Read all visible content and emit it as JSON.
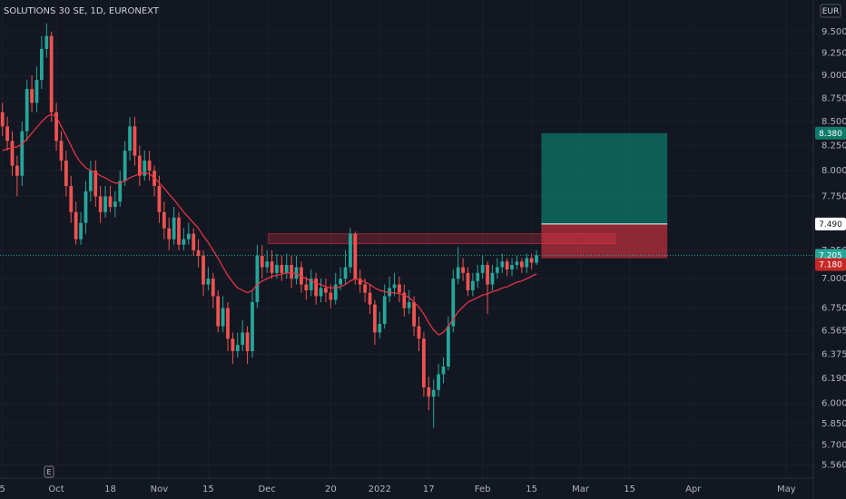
{
  "chart_data": {
    "type": "candlestick",
    "title": "SOLUTIONS 30 SE, 1D, EURONEXT",
    "currency": "EUR",
    "log": true,
    "grid": true,
    "up_color": "#26a69a",
    "down_color": "#ef5350",
    "ma_color": "#f23645",
    "xlim": [
      -0.5,
      165.5
    ],
    "ylim": [
      5.47,
      9.88
    ],
    "xticks": [
      {
        "value": 0,
        "label": "5"
      },
      {
        "value": 11,
        "label": "Oct"
      },
      {
        "value": 22,
        "label": "18"
      },
      {
        "value": 32,
        "label": "Nov"
      },
      {
        "value": 42,
        "label": "15"
      },
      {
        "value": 54,
        "label": "Dec"
      },
      {
        "value": 67,
        "label": "20"
      },
      {
        "value": 77,
        "label": "2022"
      },
      {
        "value": 87,
        "label": "17"
      },
      {
        "value": 98,
        "label": "Feb"
      },
      {
        "value": 108,
        "label": "15"
      },
      {
        "value": 118,
        "label": "Mar"
      },
      {
        "value": 128,
        "label": "15"
      },
      {
        "value": 141,
        "label": "Apr"
      },
      {
        "value": 160,
        "label": "May"
      }
    ],
    "yticks": [
      {
        "value": 9.5,
        "label": "9.500"
      },
      {
        "value": 9.25,
        "label": "9.250"
      },
      {
        "value": 9,
        "label": "9.000"
      },
      {
        "value": 8.75,
        "label": "8.750"
      },
      {
        "value": 8.5,
        "label": "8.500"
      },
      {
        "value": 8.25,
        "label": "8.250"
      },
      {
        "value": 8,
        "label": "8.000"
      },
      {
        "value": 7.75,
        "label": "7.750"
      },
      {
        "value": 7.25,
        "label": "7.250"
      },
      {
        "value": 7,
        "label": "7.000"
      },
      {
        "value": 6.75,
        "label": "6.750"
      },
      {
        "value": 6.565,
        "label": "6.565"
      },
      {
        "value": 6.375,
        "label": "6.375"
      },
      {
        "value": 6.19,
        "label": "6.190"
      },
      {
        "value": 6,
        "label": "6.000"
      },
      {
        "value": 5.85,
        "label": "5.850"
      },
      {
        "value": 5.7,
        "label": "5.700"
      },
      {
        "value": 5.56,
        "label": "5.560"
      }
    ],
    "open": [
      8.6,
      8.45,
      8.3,
      8.05,
      7.95,
      8.4,
      8.85,
      8.7,
      8.95,
      9.3,
      9.45,
      8.6,
      8.3,
      8.1,
      7.85,
      7.6,
      7.35,
      7.5,
      7.8,
      8.0,
      7.75,
      7.6,
      7.75,
      7.65,
      7.7,
      7.9,
      8.2,
      8.45,
      8.15,
      7.95,
      8.1,
      8.0,
      7.85,
      7.6,
      7.45,
      7.35,
      7.55,
      7.3,
      7.35,
      7.4,
      7.25,
      7.2,
      6.95,
      7.0,
      6.85,
      6.6,
      6.75,
      6.5,
      6.4,
      6.45,
      6.55,
      6.4,
      6.8,
      7.2,
      7.1,
      7.15,
      7.05,
      7.12,
      7.05,
      7.12,
      7.0,
      7.1,
      6.95,
      6.9,
      7.0,
      6.85,
      6.92,
      6.88,
      6.82,
      6.95,
      7.0,
      7.1,
      7.4,
      7.0,
      6.95,
      6.88,
      6.78,
      6.55,
      6.62,
      6.85,
      6.92,
      6.95,
      6.88,
      6.75,
      6.8,
      6.6,
      6.5,
      6.12,
      6.05,
      6.1,
      6.22,
      6.28,
      6.6,
      7.0,
      7.1,
      7.05,
      6.9,
      6.98,
      7.05,
      7.12,
      6.95,
      7.05,
      7.1,
      7.15,
      7.08,
      7.12,
      7.15,
      7.1,
      7.18,
      7.14
    ],
    "high": [
      8.7,
      8.55,
      8.4,
      8.15,
      8.5,
      8.95,
      9.0,
      9.1,
      9.45,
      9.6,
      9.5,
      8.7,
      8.4,
      8.2,
      7.95,
      7.7,
      7.6,
      7.9,
      8.1,
      8.1,
      7.85,
      7.85,
      7.85,
      7.8,
      8.0,
      8.3,
      8.55,
      8.55,
      8.25,
      8.2,
      8.2,
      8.05,
      7.95,
      7.7,
      7.55,
      7.65,
      7.6,
      7.45,
      7.5,
      7.45,
      7.35,
      7.25,
      7.1,
      7.05,
      6.9,
      6.85,
      6.8,
      6.55,
      6.55,
      6.65,
      6.6,
      6.9,
      7.3,
      7.3,
      7.25,
      7.25,
      7.22,
      7.2,
      7.22,
      7.2,
      7.2,
      7.15,
      7.02,
      7.08,
      7.05,
      7.0,
      7.0,
      6.95,
      7.05,
      7.1,
      7.25,
      7.45,
      7.42,
      7.08,
      7.0,
      6.95,
      6.82,
      6.72,
      6.95,
      7.02,
      7.05,
      7.02,
      6.95,
      6.9,
      6.85,
      6.68,
      6.55,
      6.2,
      6.18,
      6.3,
      6.35,
      6.68,
      7.08,
      7.28,
      7.18,
      7.1,
      7.05,
      7.12,
      7.2,
      7.15,
      7.12,
      7.18,
      7.22,
      7.18,
      7.18,
      7.2,
      7.18,
      7.22,
      7.22,
      7.25
    ],
    "low": [
      8.35,
      8.2,
      7.95,
      7.75,
      7.85,
      8.3,
      8.6,
      8.6,
      8.85,
      9.2,
      8.5,
      8.2,
      8.0,
      7.75,
      7.5,
      7.3,
      7.3,
      7.4,
      7.7,
      7.65,
      7.5,
      7.55,
      7.6,
      7.55,
      7.65,
      7.85,
      8.1,
      8.05,
      7.85,
      7.9,
      7.9,
      7.75,
      7.5,
      7.35,
      7.25,
      7.3,
      7.25,
      7.25,
      7.3,
      7.2,
      7.1,
      6.85,
      6.9,
      6.75,
      6.55,
      6.55,
      6.4,
      6.3,
      6.35,
      6.4,
      6.3,
      6.35,
      6.75,
      7.0,
      7.05,
      7.0,
      7.0,
      6.98,
      7.0,
      6.92,
      6.95,
      6.88,
      6.82,
      6.85,
      6.78,
      6.8,
      6.8,
      6.75,
      6.78,
      6.9,
      6.95,
      7.05,
      6.95,
      6.88,
      6.8,
      6.7,
      6.45,
      6.5,
      6.58,
      6.8,
      6.85,
      6.8,
      6.68,
      6.7,
      6.52,
      6.4,
      6.05,
      5.95,
      5.82,
      6.05,
      6.15,
      6.25,
      6.55,
      6.95,
      6.98,
      6.85,
      6.85,
      6.92,
      7.0,
      6.7,
      6.9,
      7.0,
      7.05,
      7.02,
      7.02,
      7.08,
      7.05,
      7.05,
      7.08,
      7.12
    ],
    "close": [
      8.45,
      8.3,
      8.05,
      7.95,
      8.4,
      8.85,
      8.7,
      8.95,
      9.3,
      9.45,
      8.6,
      8.3,
      8.1,
      7.85,
      7.6,
      7.35,
      7.5,
      7.8,
      8.0,
      7.75,
      7.6,
      7.75,
      7.65,
      7.7,
      7.9,
      8.2,
      8.45,
      8.15,
      7.95,
      8.1,
      8.0,
      7.85,
      7.6,
      7.45,
      7.35,
      7.55,
      7.3,
      7.35,
      7.4,
      7.25,
      7.2,
      6.95,
      7.0,
      6.85,
      6.6,
      6.75,
      6.5,
      6.4,
      6.45,
      6.55,
      6.4,
      6.8,
      7.2,
      7.1,
      7.15,
      7.05,
      7.12,
      7.05,
      7.12,
      7.0,
      7.1,
      6.95,
      6.9,
      7.0,
      6.85,
      6.92,
      6.88,
      6.82,
      6.95,
      7.0,
      7.1,
      7.4,
      7.0,
      6.95,
      6.88,
      6.78,
      6.55,
      6.62,
      6.85,
      6.92,
      6.95,
      6.88,
      6.75,
      6.8,
      6.6,
      6.5,
      6.12,
      6.05,
      6.1,
      6.22,
      6.28,
      6.6,
      7.0,
      7.1,
      7.05,
      6.9,
      6.98,
      7.05,
      7.12,
      6.95,
      7.05,
      7.1,
      7.15,
      7.08,
      7.12,
      7.15,
      7.1,
      7.18,
      7.14,
      7.205
    ],
    "ma": [
      8.2,
      8.22,
      8.23,
      8.24,
      8.27,
      8.32,
      8.38,
      8.44,
      8.5,
      8.55,
      8.58,
      8.55,
      8.45,
      8.35,
      8.25,
      8.15,
      8.08,
      8.03,
      8.0,
      7.98,
      7.95,
      7.93,
      7.9,
      7.88,
      7.88,
      7.9,
      7.93,
      7.95,
      7.97,
      7.98,
      7.97,
      7.93,
      7.88,
      7.83,
      7.77,
      7.72,
      7.66,
      7.6,
      7.55,
      7.5,
      7.45,
      7.38,
      7.32,
      7.25,
      7.18,
      7.1,
      7.03,
      6.97,
      6.92,
      6.9,
      6.88,
      6.9,
      6.95,
      6.98,
      7.0,
      7.02,
      7.03,
      7.04,
      7.05,
      7.05,
      7.04,
      7.02,
      7.0,
      6.98,
      6.96,
      6.95,
      6.93,
      6.92,
      6.92,
      6.93,
      6.95,
      6.98,
      7.0,
      6.99,
      6.97,
      6.95,
      6.92,
      6.9,
      6.89,
      6.88,
      6.88,
      6.87,
      6.86,
      6.84,
      6.8,
      6.76,
      6.7,
      6.63,
      6.57,
      6.53,
      6.55,
      6.6,
      6.66,
      6.72,
      6.76,
      6.8,
      6.82,
      6.84,
      6.86,
      6.87,
      6.89,
      6.9,
      6.92,
      6.93,
      6.95,
      6.97,
      6.98,
      7.0,
      7.02,
      7.04
    ],
    "last_price": 7.205,
    "zone": {
      "x": [
        54.3,
        125
      ],
      "y": [
        7.31,
        7.4
      ]
    },
    "position": {
      "x": [
        110,
        135.7
      ],
      "target": {
        "value": 8.38,
        "label": "8.380"
      },
      "entry": {
        "value": 7.49,
        "label": "7.490"
      },
      "stop": {
        "value": 7.18,
        "label": "7.180"
      }
    },
    "events": [
      {
        "x": 9.5,
        "label": "E"
      }
    ]
  }
}
